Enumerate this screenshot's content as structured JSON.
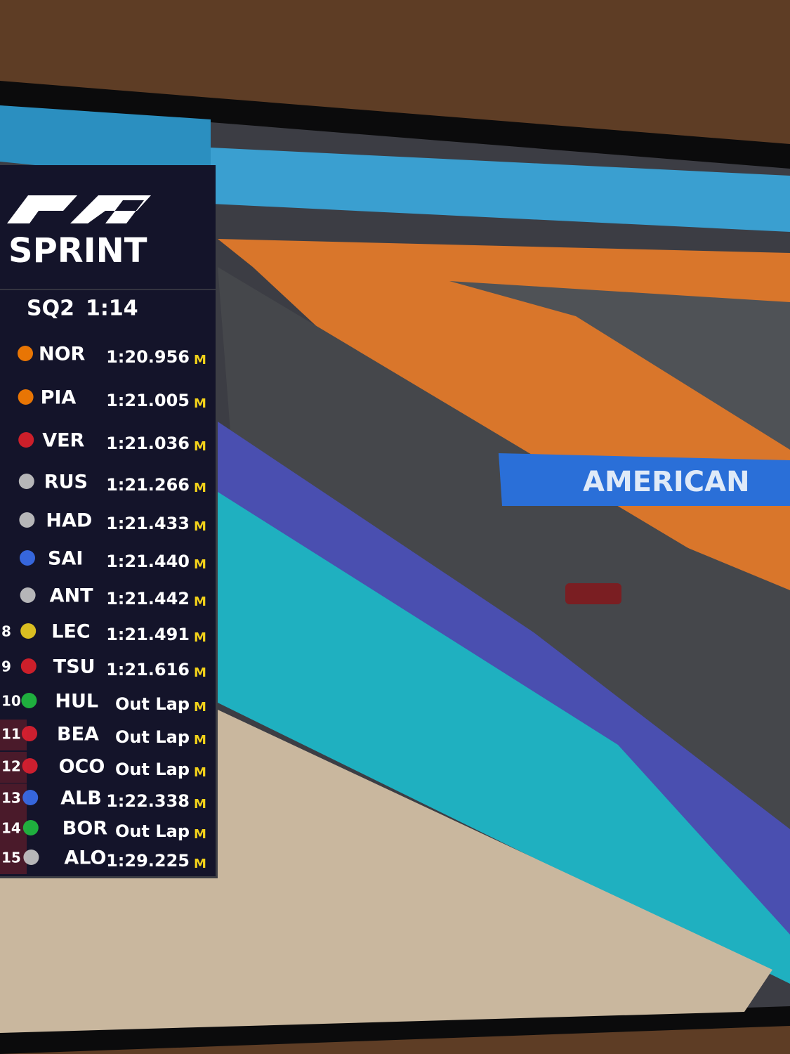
{
  "overlay": {
    "brand": "SPRINT",
    "session": "SQ2",
    "clock": "1:14",
    "rows": [
      {
        "driver": "NOR",
        "time": "1:20.956",
        "tyre": "M"
      },
      {
        "driver": "PIA",
        "time": "1:21.005",
        "tyre": "M"
      },
      {
        "driver": "VER",
        "time": "1:21.036",
        "tyre": "M"
      },
      {
        "driver": "RUS",
        "time": "1:21.266",
        "tyre": "M"
      },
      {
        "driver": "HAD",
        "time": "1:21.433",
        "tyre": "M"
      },
      {
        "driver": "SAI",
        "time": "1:21.440",
        "tyre": "M"
      },
      {
        "driver": "ANT",
        "time": "1:21.442",
        "tyre": "M"
      },
      {
        "position": 8,
        "driver": "LEC",
        "time": "1:21.491",
        "tyre": "M"
      },
      {
        "position": 9,
        "driver": "TSU",
        "time": "1:21.616",
        "tyre": "M"
      },
      {
        "position": 10,
        "driver": "HUL",
        "time": "Out Lap",
        "tyre": "M"
      },
      {
        "position": 11,
        "driver": "BEA",
        "time": "Out Lap",
        "tyre": "M"
      },
      {
        "position": 12,
        "driver": "OCO",
        "time": "Out Lap",
        "tyre": "M"
      },
      {
        "position": 13,
        "driver": "ALB",
        "time": "1:22.338",
        "tyre": "M"
      },
      {
        "position": 14,
        "driver": "BOR",
        "time": "Out Lap",
        "tyre": "M"
      },
      {
        "position": 15,
        "driver": "ALO",
        "time": "1:29.225",
        "tyre": "M"
      }
    ]
  },
  "scene": {
    "banner": "AMERICAN"
  }
}
